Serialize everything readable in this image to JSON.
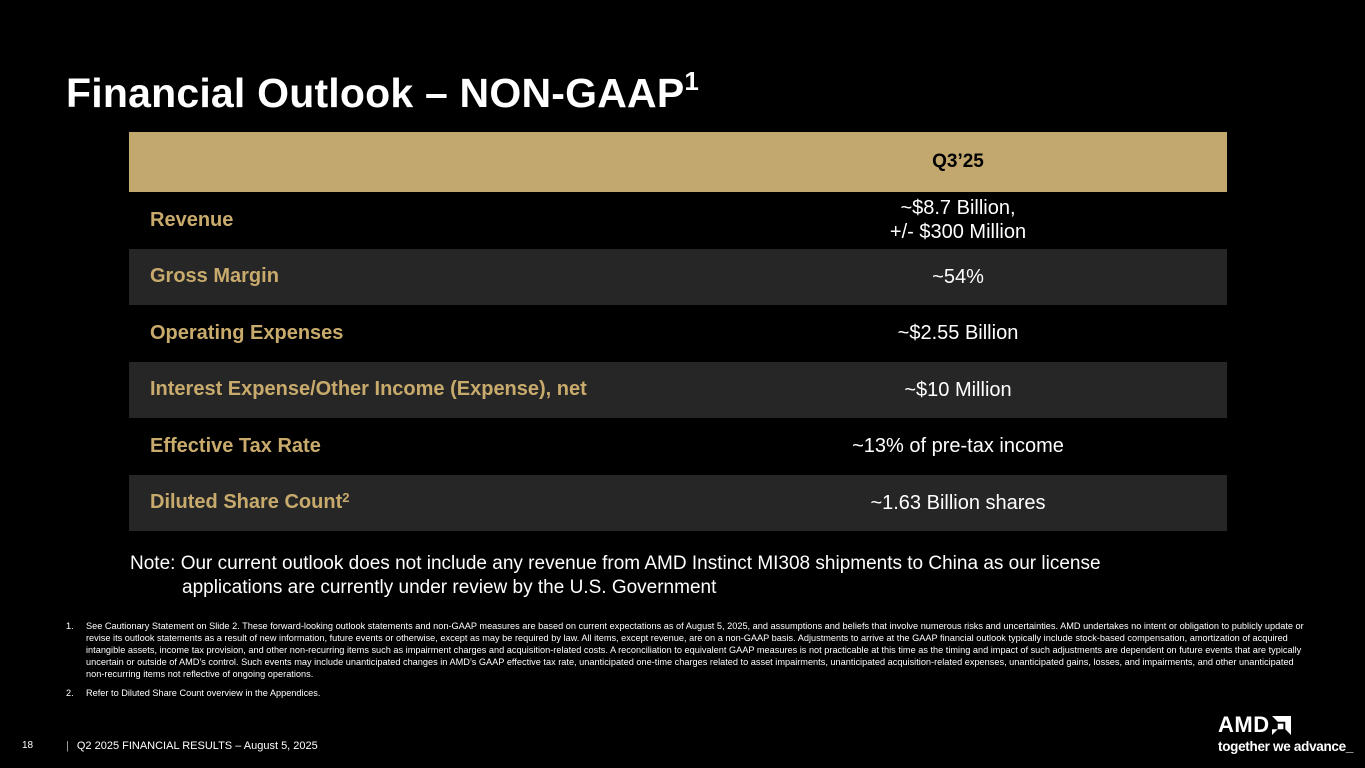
{
  "slide": {
    "title": "Financial Outlook – NON-GAAP",
    "title_superscript": "1",
    "page_number": "18",
    "footer_separator": "|",
    "footer_text": "Q2 2025 FINANCIAL RESULTS – August 5, 2025"
  },
  "table": {
    "header_label": "",
    "period": "Q3’25",
    "rows": [
      {
        "label": "Revenue",
        "value_line1": "~$8.7 Billion,",
        "value_line2": "+/- $300 Million"
      },
      {
        "label": "Gross Margin",
        "value_line1": "~54%"
      },
      {
        "label": "Operating Expenses",
        "value_line1": "~$2.55 Billion"
      },
      {
        "label": "Interest Expense/Other Income (Expense), net",
        "value_line1": "~$10 Million"
      },
      {
        "label": "Effective Tax Rate",
        "value_line1": "~13% of pre-tax income"
      },
      {
        "label": "Diluted Share Count",
        "label_superscript": "2",
        "value_line1": "~1.63 Billion shares"
      }
    ]
  },
  "note": {
    "line1": "Note: Our current outlook does not include any revenue from AMD Instinct MI308 shipments to China as our license",
    "line2": "applications are currently under review by the U.S. Government"
  },
  "footnotes": [
    {
      "number": "1.",
      "text": "See Cautionary Statement on Slide 2. These forward-looking outlook statements and non-GAAP measures are based on current expectations as of August 5, 2025, and assumptions and beliefs that involve numerous risks and uncertainties. AMD undertakes no intent or obligation to publicly update or revise its outlook statements as a result of new information, future events or otherwise, except as may be required by law. All items, except revenue, are on a non-GAAP basis. Adjustments to arrive at the GAAP financial outlook typically include stock-based compensation, amortization of acquired intangible assets, income tax provision, and other non-recurring items such as impairment charges and acquisition-related costs. A reconciliation to equivalent GAAP measures is not practicable at this time as the timing and impact of such adjustments are dependent on future events that are typically uncertain or outside of AMD’s control. Such events may include unanticipated changes in AMD’s GAAP effective tax rate, unanticipated one-time charges related to asset impairments, unanticipated acquisition-related expenses, unanticipated gains, losses, and impairments, and other unanticipated non-recurring items not reflective of ongoing operations."
    },
    {
      "number": "2.",
      "text": "Refer to Diluted Share Count overview in the Appendices."
    }
  ],
  "logo": {
    "wordmark": "AMD",
    "mark_icon": "amd-arrow-icon",
    "tagline": "together we advance_"
  },
  "colors": {
    "background": "#000000",
    "header_gold": "#c2a86e",
    "label_gold": "#c8ab6c",
    "shaded_row": "#262626"
  }
}
